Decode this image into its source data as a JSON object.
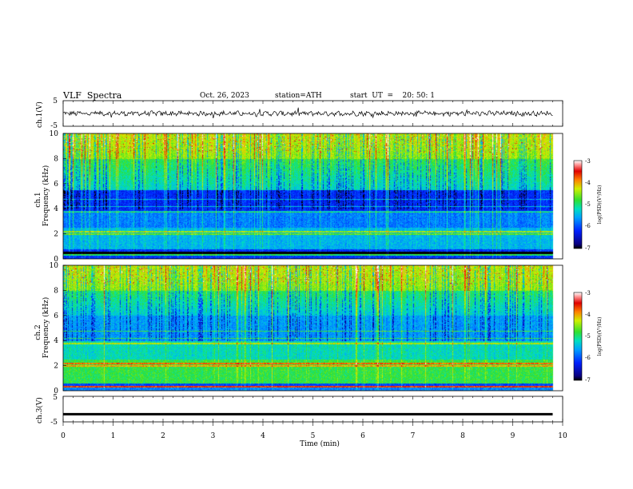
{
  "header": {
    "title": "VLF  Spectra",
    "date": "Oct. 26, 2023",
    "station": "station=ATH",
    "start": "start  UT  =    20: 50: 1"
  },
  "chart_data": [
    {
      "type": "line",
      "ylabel": "ch.1(V)",
      "ylim": [
        -5,
        5
      ],
      "yticks": [
        "5",
        "-5"
      ],
      "xlim": [
        0,
        10
      ],
      "description_level": "waveform near 0 V, amplitude about ±1 V"
    },
    {
      "type": "heatmap",
      "ylabel_top": "ch.1",
      "ylabel": "Frequency  (kHz)",
      "ylim": [
        0,
        10
      ],
      "yticks": [
        "10",
        "8",
        "6",
        "4",
        "2",
        "0"
      ],
      "xlim": [
        0,
        10
      ],
      "colorbar": {
        "label": "log(PSD)(V²/Hz)",
        "ticks": [
          "-3",
          "-4",
          "-5",
          "-6",
          "-7"
        ],
        "range": [
          -7,
          -3
        ]
      }
    },
    {
      "type": "heatmap",
      "ylabel_top": "ch.2",
      "ylabel": "Frequency  (kHz)",
      "ylim": [
        0,
        10
      ],
      "yticks": [
        "10",
        "8",
        "6",
        "4",
        "2",
        "0"
      ],
      "xlim": [
        0,
        10
      ],
      "colorbar": {
        "label": "log(PSD)(V²/Hz)",
        "ticks": [
          "-3",
          "-4",
          "-5",
          "-6",
          "-7"
        ],
        "range": [
          -7,
          -3
        ]
      }
    },
    {
      "type": "line",
      "ylabel": "ch.3(V)",
      "ylim": [
        -5,
        5
      ],
      "yticks": [
        "5",
        "-5"
      ],
      "xlabel": "Time  (min)",
      "xlim": [
        0,
        10
      ],
      "xticks": [
        "0",
        "1",
        "2",
        "3",
        "4",
        "5",
        "6",
        "7",
        "8",
        "9",
        "10"
      ],
      "level": -2
    }
  ]
}
